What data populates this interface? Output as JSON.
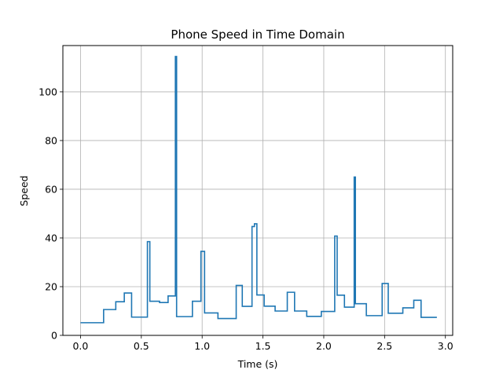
{
  "chart_data": {
    "type": "line",
    "title": "Phone Speed in Time Domain",
    "xlabel": "Time (s)",
    "ylabel": "Speed",
    "xlim": [
      -0.145,
      3.06
    ],
    "ylim": [
      0,
      119
    ],
    "xticks": [
      0.0,
      0.5,
      1.0,
      1.5,
      2.0,
      2.5,
      3.0
    ],
    "xtick_labels": [
      "0.0",
      "0.5",
      "1.0",
      "1.5",
      "2.0",
      "2.5",
      "3.0"
    ],
    "yticks": [
      0,
      20,
      40,
      60,
      80,
      100
    ],
    "ytick_labels": [
      "0",
      "20",
      "40",
      "60",
      "80",
      "100"
    ],
    "grid": true,
    "line_color": "#1f77b4",
    "series": [
      {
        "step": "post",
        "x": [
          0.0,
          0.19,
          0.29,
          0.36,
          0.42,
          0.55,
          0.57,
          0.65,
          0.72,
          0.78,
          0.79,
          0.92,
          0.99,
          1.02,
          1.13,
          1.28,
          1.33,
          1.41,
          1.43,
          1.45,
          1.51,
          1.6,
          1.7,
          1.76,
          1.86,
          1.98,
          2.09,
          2.11,
          2.17,
          2.25,
          2.26,
          2.35,
          2.48,
          2.53,
          2.65,
          2.74,
          2.8,
          2.93
        ],
        "y": [
          5.2,
          10.6,
          13.8,
          17.4,
          7.5,
          38.5,
          14.0,
          13.5,
          16.2,
          114.5,
          7.7,
          14.0,
          34.5,
          9.2,
          6.9,
          20.5,
          11.9,
          44.7,
          45.8,
          16.6,
          12.0,
          10.0,
          17.7,
          10.0,
          7.8,
          9.8,
          40.8,
          16.5,
          11.6,
          65.0,
          13.0,
          8.1,
          21.3,
          9.1,
          11.3,
          14.4,
          7.4,
          7.4
        ]
      }
    ]
  }
}
